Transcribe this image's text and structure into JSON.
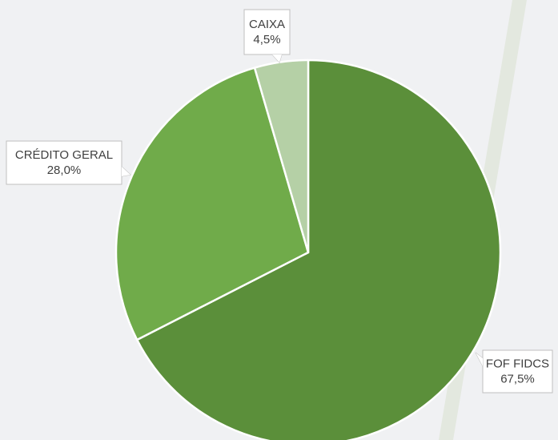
{
  "chart_data": {
    "type": "pie",
    "categories": [
      "FOF FIDCS",
      "CRÉDITO GERAL",
      "CAIXA"
    ],
    "values": [
      67.5,
      28.0,
      4.5
    ],
    "value_labels": [
      "67,5%",
      "28,0%",
      "4,5%"
    ],
    "colors": [
      "#5b8f3a",
      "#70ab4a",
      "#b5d0a6"
    ]
  }
}
